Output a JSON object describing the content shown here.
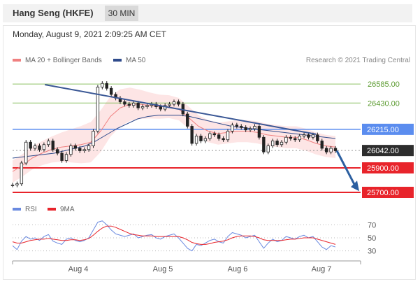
{
  "header": {
    "title": "Hang Seng (HKFE)",
    "timeframe": "30 MIN",
    "datetime": "Monday, August 9, 2021 2:09:25 AM CET"
  },
  "legend": {
    "ma20_label": "MA 20 + Bollinger Bands",
    "ma50_label": "MA 50",
    "copyright": "Research © 2021 Trading Central"
  },
  "rsi_legend": {
    "rsi_label": "RSI",
    "ma9_label": "9MA"
  },
  "colors": {
    "ma20": "#f08080",
    "ma50": "#2f4b8c",
    "bollinger_fill": "#fde0e0",
    "resistance": "#8cc063",
    "current": "#5b8def",
    "support": "#e8242b",
    "price_box": "#2d2d2d",
    "trendline": "#3a5795",
    "arrow": "#2c5fa0",
    "rsi": "#6a8ae0",
    "rsi_ma": "#e8242b"
  },
  "chart_data": [
    {
      "type": "line",
      "title": "Hang Seng (HKFE)",
      "subtitle": "30 MIN",
      "x_tick_labels": [
        "Aug 4",
        "Aug 5",
        "Aug 6",
        "Aug 7"
      ],
      "ylim": [
        25660,
        26700
      ],
      "levels": [
        {
          "value": 26585,
          "label": "26585.00",
          "kind": "resistance"
        },
        {
          "value": 26430,
          "label": "26430.00",
          "kind": "resistance"
        },
        {
          "value": 26215,
          "label": "26215.00",
          "kind": "current-pivot"
        },
        {
          "value": 26042,
          "label": "26042.00",
          "kind": "last-price"
        },
        {
          "value": 25900,
          "label": "25900.00",
          "kind": "support"
        },
        {
          "value": 25700,
          "label": "25700.00",
          "kind": "support"
        }
      ],
      "trendline": {
        "start_index": 0.1,
        "start_value": 26580,
        "end_index": 0.94,
        "end_value": 26175
      },
      "forecast_arrow": {
        "from_value": 26040,
        "to_value": 25710
      },
      "series": [
        {
          "name": "Price",
          "values": [
            25760,
            25770,
            25940,
            26110,
            26060,
            26080,
            26050,
            26090,
            26120,
            26050,
            26020,
            25960,
            26010,
            26080,
            26060,
            26040,
            26050,
            26080,
            26200,
            26560,
            26590,
            26550,
            26500,
            26470,
            26440,
            26420,
            26410,
            26430,
            26390,
            26400,
            26410,
            26420,
            26400,
            26380,
            26410,
            26420,
            26440,
            26420,
            26340,
            26240,
            26100,
            26160,
            26120,
            26140,
            26180,
            26170,
            26140,
            26130,
            26200,
            26250,
            26240,
            26230,
            26210,
            26220,
            26240,
            26150,
            26030,
            26080,
            26120,
            26090,
            26110,
            26150,
            26140,
            26130,
            26160,
            26170,
            26150,
            26170,
            26120,
            26060,
            26030,
            26060,
            26040
          ]
        },
        {
          "name": "MA 20",
          "values": [
            25870,
            25920,
            25980,
            26020,
            26050,
            26070,
            26080,
            26090,
            26110,
            26200,
            26320,
            26390,
            26420,
            26420,
            26410,
            26400,
            26400,
            26380,
            26310,
            26240,
            26200,
            26180,
            26190,
            26200,
            26200,
            26190,
            26170,
            26160,
            26150,
            26150,
            26130,
            26100,
            26080,
            26070
          ]
        },
        {
          "name": "MA 50",
          "values": [
            25980,
            25990,
            26000,
            26010,
            26020,
            26040,
            26060,
            26080,
            26120,
            26170,
            26220,
            26260,
            26300,
            26320,
            26330,
            26330,
            26330,
            26320,
            26300,
            26280,
            26260,
            26240,
            26230,
            26220,
            26210,
            26200,
            26190,
            26180,
            26170,
            26160,
            26150,
            26140
          ]
        }
      ]
    },
    {
      "type": "line",
      "title": "RSI",
      "ylim": [
        20,
        80
      ],
      "y_ticks": [
        70,
        50,
        30
      ],
      "x_tick_labels": [
        "Aug 4",
        "Aug 5",
        "Aug 6",
        "Aug 7"
      ],
      "series": [
        {
          "name": "RSI",
          "values": [
            38,
            32,
            45,
            52,
            48,
            50,
            46,
            52,
            55,
            45,
            42,
            40,
            48,
            50,
            46,
            44,
            46,
            50,
            62,
            74,
            76,
            70,
            62,
            56,
            54,
            52,
            54,
            56,
            50,
            52,
            54,
            55,
            50,
            48,
            52,
            54,
            56,
            50,
            42,
            34,
            30,
            40,
            38,
            42,
            46,
            48,
            44,
            42,
            52,
            58,
            56,
            54,
            50,
            52,
            54,
            44,
            34,
            42,
            48,
            44,
            46,
            52,
            50,
            48,
            52,
            54,
            50,
            52,
            44,
            36,
            32,
            38,
            36
          ]
        },
        {
          "name": "9MA",
          "values": [
            44,
            42,
            42,
            44,
            46,
            47,
            48,
            48,
            49,
            48,
            47,
            46,
            46,
            47,
            47,
            46,
            47,
            49,
            54,
            60,
            65,
            68,
            68,
            66,
            63,
            60,
            57,
            55,
            54,
            53,
            53,
            53,
            52,
            52,
            52,
            52,
            52,
            52,
            50,
            47,
            43,
            41,
            40,
            40,
            41,
            43,
            44,
            45,
            47,
            50,
            52,
            53,
            53,
            53,
            52,
            50,
            47,
            46,
            46,
            46,
            46,
            47,
            48,
            48,
            49,
            50,
            50,
            50,
            48,
            46,
            44,
            42,
            40
          ]
        }
      ]
    }
  ]
}
